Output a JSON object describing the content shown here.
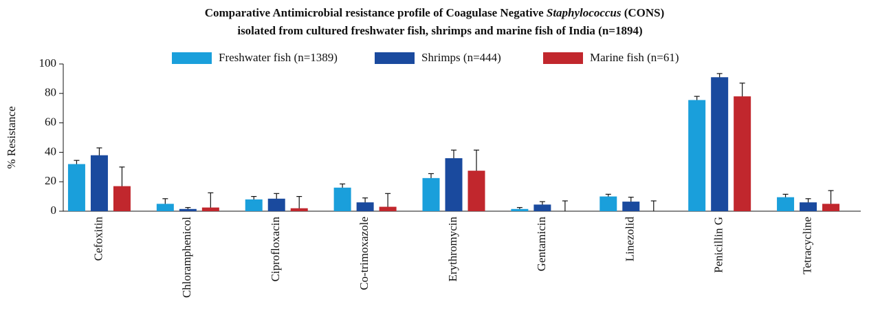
{
  "chart_data": {
    "type": "bar",
    "title": [
      [
        "Comparative Antimicrobial resistance profile of Coagulase Negative ",
        "Staphylococcus",
        " (CONS)"
      ],
      [
        "isolated from cultured freshwater fish, shrimps and marine fish of India (n=1894)"
      ]
    ],
    "y_label": "% Resistance",
    "categories": [
      "Cefoxitin",
      "Chloramphenicol",
      "Ciprofloxacin",
      "Co-trimoxazole",
      "Erythromycin",
      "Gentamicin",
      "Linezolid",
      "Penicillin G",
      "Tetracycline"
    ],
    "series": [
      {
        "name": "Freshwater fish (n=1389)",
        "color": "#1a9fdb",
        "values": [
          32,
          5,
          8,
          16,
          22.5,
          1.5,
          10,
          75.5,
          9.5
        ],
        "errors": [
          2.5,
          3.5,
          2,
          2.5,
          3,
          1,
          1.5,
          2.5,
          2
        ]
      },
      {
        "name": "Shrimps (n=444)",
        "color": "#1a4a9e",
        "values": [
          38,
          1.5,
          8.5,
          6,
          36,
          4.5,
          6.5,
          91,
          6
        ],
        "errors": [
          5,
          1,
          3.5,
          3,
          5.5,
          2,
          3,
          2.5,
          2.5
        ]
      },
      {
        "name": "Marine fish (n=61)",
        "color": "#c1272d",
        "values": [
          17,
          2.5,
          2,
          3,
          27.5,
          0,
          0,
          78,
          5
        ],
        "errors": [
          13,
          10,
          8,
          9,
          14,
          7,
          7,
          9,
          9
        ]
      }
    ],
    "ylim": [
      0,
      100
    ],
    "yticks": [
      0,
      20,
      40,
      60,
      80,
      100
    ],
    "grid": false,
    "legend": "top"
  }
}
